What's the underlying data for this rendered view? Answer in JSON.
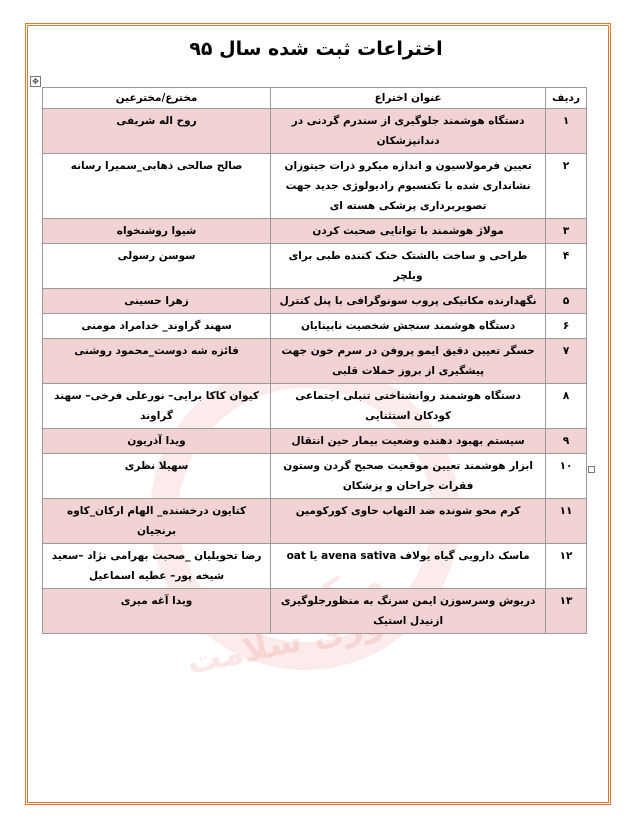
{
  "title": "اختراعات ثبت شده  سال ۹۵",
  "table": {
    "headers": {
      "index": "ردیف",
      "invention": "عنوان اختراع",
      "inventors": "مخترع/مخترعین"
    },
    "rows": [
      {
        "index": "۱",
        "invention": "دستگاه هوشمند جلوگیری از سندرم گردنی در دندانپزشکان",
        "inventors": "روح اله شریفی"
      },
      {
        "index": "۲",
        "invention": "تعیین فرمولاسیون و اندازه میکرو ذرات جیتوزان نشانداری شده با تکنسیوم رادیولوژی جدید جهت تصویربرداری پزشکی هسته ای",
        "inventors": "صالح صالحی ذهابی_سمیرا رسانه"
      },
      {
        "index": "۳",
        "invention": "مولاژ هوشمند با توانایی صحبت کردن",
        "inventors": "شیوا روشنخواه"
      },
      {
        "index": "۴",
        "invention": "طراحی و ساخت بالشتک خنک کننده طبی برای ویلچر",
        "inventors": "سوسن رسولی"
      },
      {
        "index": "۵",
        "invention": "نگهدارنده مکانیکی پروب سونوگرافی با پنل کنترل",
        "inventors": "زهرا حسینی"
      },
      {
        "index": "۶",
        "invention": "دستگاه هوشمند سنجش شخصیت نابینایان",
        "inventors": "سهند گراوند_ خدامراد مومنی"
      },
      {
        "index": "۷",
        "invention": "حسگر تعیین دقیق ایمو پروفن در سرم خون جهت پیشگیری از بروز حملات قلبی",
        "inventors": "فائزه شه دوست_محمود روشنی"
      },
      {
        "index": "۸",
        "invention": "دستگاه هوشمند روانشناختی تنبلی اجتماعی کودکان استثنایی",
        "inventors": "کیوان کاکا برایی– نورعلی فرخی– سهند گراوند"
      },
      {
        "index": "۹",
        "invention": "سیستم بهبود دهنده وضعیت بیمار حین انتقال",
        "inventors": "ویدا آذریون"
      },
      {
        "index": "۱۰",
        "invention": "ابزار هوشمند تعیین موقعیت صحیح گردن وستون فقرات جراحان و پزشکان",
        "inventors": "سهیلا نظری"
      },
      {
        "index": "۱۱",
        "invention": "کرم محو شونده ضد التهاب حاوی کورکومین",
        "inventors": "کتایون درخشنده_ الهام ارکان_کاوه برنجیان"
      },
      {
        "index": "۱۲",
        "invention": "ماسک دارویی گیاه یولاف avena sativa یا oat",
        "inventors": "رضا تحویلیان _صحبت بهرامی نژاد –سعید شیخه پور– عطیه اسماعیل"
      },
      {
        "index": "۱۳",
        "invention": "دریوش وسرسوزن ایمن سرنگ به منظورجلوگیری ازنیدل استیک",
        "inventors": "ویدا آغه میری"
      }
    ]
  },
  "colors": {
    "row_highlight": "#f2d3d3",
    "page_border": "#e07a2a"
  },
  "watermark": {
    "text": "مرکز رشد فناوری سلامت"
  }
}
